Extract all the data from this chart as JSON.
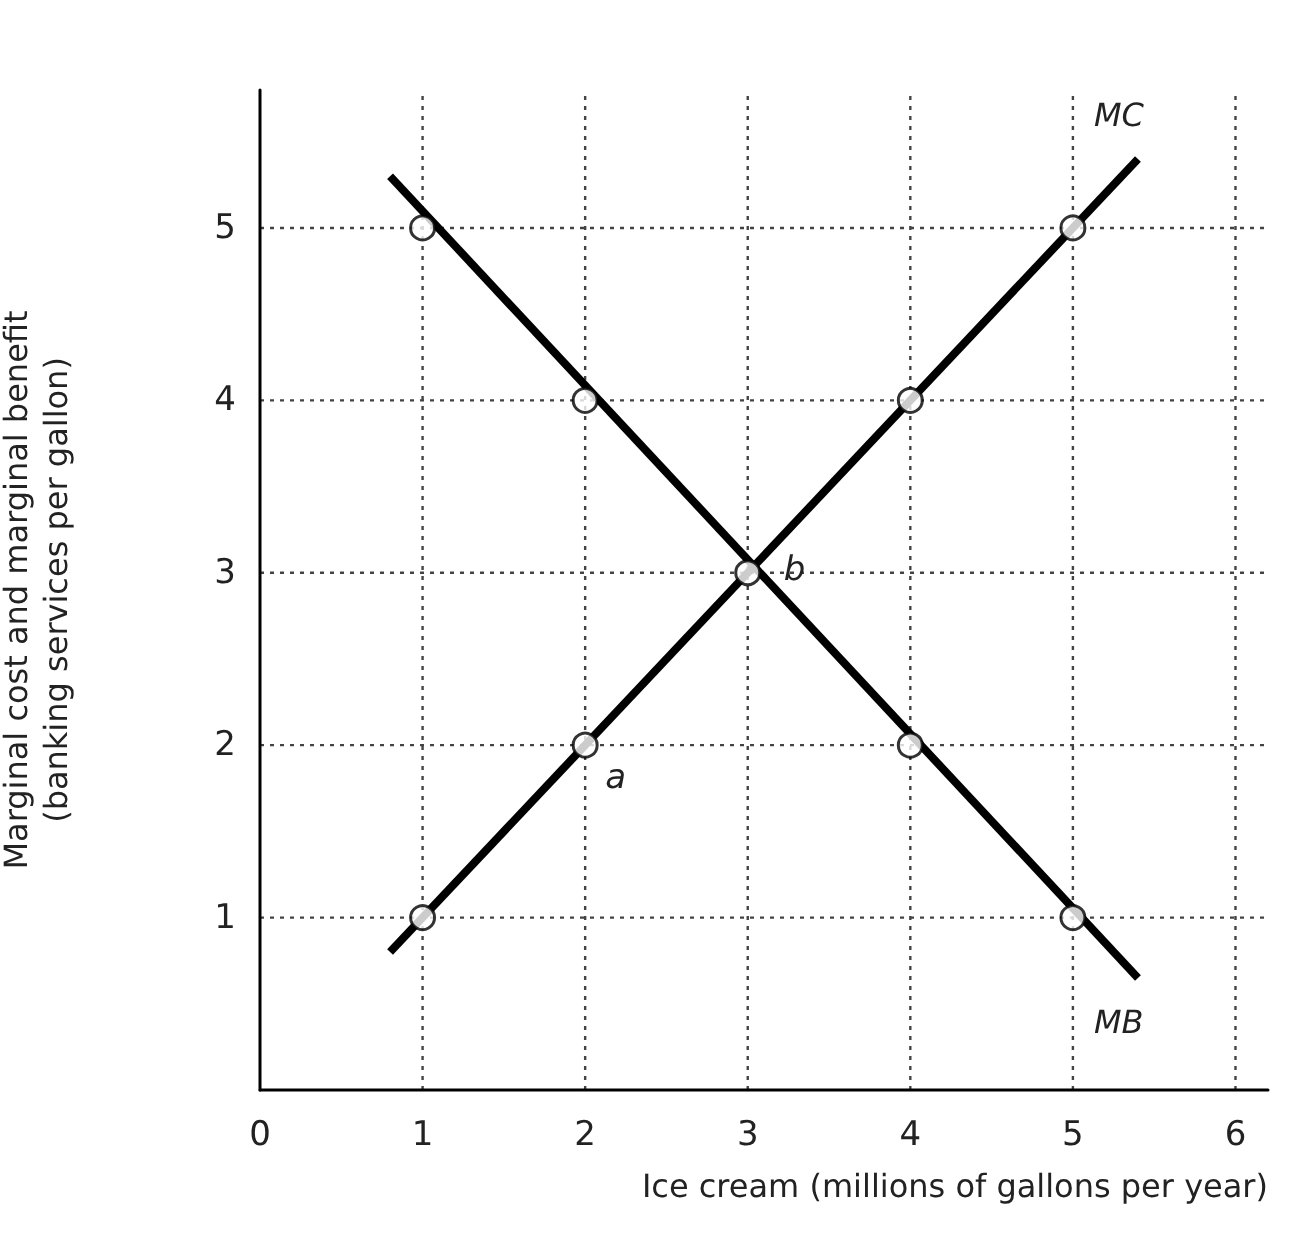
{
  "chart_data": {
    "type": "line",
    "xlabel": "Ice cream (millions of gallons per year)",
    "ylabel": "Marginal cost and marginal benefit\n(banking services per gallon)",
    "xlim": [
      0,
      6.2
    ],
    "xticks": [
      0,
      1,
      2,
      3,
      4,
      5,
      6
    ],
    "ylim": [
      0,
      5.8
    ],
    "yticks": [
      1,
      2,
      3,
      4,
      5
    ],
    "grid": true,
    "legend": false,
    "series": [
      {
        "name": "MC",
        "color": "#000000",
        "marker": "none",
        "x": [
          0.8,
          5.4
        ],
        "values": [
          0.8,
          5.4
        ]
      },
      {
        "name": "MB",
        "color": "#000000",
        "marker": "none",
        "x": [
          0.8,
          5.4
        ],
        "values": [
          5.3,
          0.65
        ]
      },
      {
        "type": "scatter",
        "color": "#000000",
        "marker": "circle",
        "x": [
          1,
          2,
          3,
          4,
          5
        ],
        "values": [
          1,
          2,
          3,
          4,
          5
        ]
      },
      {
        "type": "scatter",
        "color": "#000000",
        "marker": "circle",
        "x": [
          1,
          2,
          4,
          5
        ],
        "values": [
          5,
          4,
          2,
          1
        ]
      }
    ],
    "annotations": [
      {
        "text": "a",
        "x": 2,
        "y": 2
      },
      {
        "text": "b",
        "x": 3,
        "y": 3
      }
    ]
  }
}
